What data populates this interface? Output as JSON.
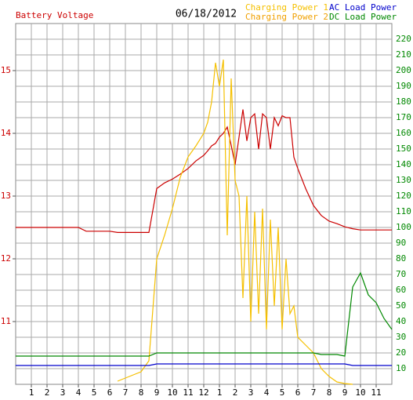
{
  "chart_data": {
    "type": "line",
    "title": "06/18/2012",
    "x": [
      0,
      0.5,
      1,
      1.5,
      2,
      2.5,
      3,
      3.5,
      4,
      4.5,
      5,
      5.5,
      6,
      6.5,
      7,
      7.5,
      8,
      8.5,
      9,
      9.5,
      10,
      10.5,
      11,
      11.5,
      12,
      12.25,
      12.5,
      12.75,
      13,
      13.25,
      13.5,
      13.75,
      14,
      14.25,
      14.5,
      14.75,
      15,
      15.25,
      15.5,
      15.75,
      16,
      16.25,
      16.5,
      16.75,
      17,
      17.25,
      17.5,
      17.75,
      18,
      18.5,
      19,
      19.5,
      20,
      20.5,
      21,
      21.5,
      22,
      22.5,
      23,
      23.5,
      24
    ],
    "xlim": [
      0,
      24
    ],
    "xticks": [
      1,
      2,
      3,
      4,
      5,
      6,
      7,
      8,
      9,
      10,
      11,
      12,
      {
        "value": 13,
        "label": "1"
      },
      {
        "value": 14,
        "label": "2"
      },
      {
        "value": 15,
        "label": "3"
      },
      {
        "value": 16,
        "label": "4"
      },
      {
        "value": 17,
        "label": "5"
      },
      {
        "value": 18,
        "label": "6"
      },
      {
        "value": 19,
        "label": "7"
      },
      {
        "value": 20,
        "label": "8"
      },
      {
        "value": 21,
        "label": "9"
      },
      {
        "value": 22,
        "label": "10"
      },
      {
        "value": 23,
        "label": "11"
      }
    ],
    "ylim": [
      10,
      15.75
    ],
    "yticks": [
      11,
      12,
      13,
      14,
      15
    ],
    "y2lim": [
      0,
      230
    ],
    "y2ticks": [
      10,
      20,
      30,
      40,
      50,
      60,
      70,
      80,
      90,
      100,
      110,
      120,
      130,
      140,
      150,
      160,
      170,
      180,
      190,
      200,
      210,
      220
    ],
    "grid": true,
    "series": [
      {
        "name": "Battery Voltage",
        "color": "#cc0000",
        "axis": "y",
        "values": [
          12.5,
          12.5,
          12.5,
          12.5,
          12.5,
          12.5,
          12.5,
          12.5,
          12.5,
          12.44,
          12.44,
          12.44,
          12.44,
          12.42,
          12.42,
          12.42,
          12.42,
          12.42,
          13.12,
          13.21,
          13.27,
          13.35,
          13.44,
          13.56,
          13.65,
          13.72,
          13.8,
          13.84,
          13.94,
          14.0,
          14.1,
          13.81,
          13.5,
          13.94,
          14.38,
          13.88,
          14.25,
          14.31,
          13.75,
          14.31,
          14.25,
          13.75,
          14.25,
          14.12,
          14.28,
          14.25,
          14.25,
          13.62,
          13.44,
          13.12,
          12.85,
          12.69,
          12.6,
          12.56,
          12.51,
          12.48,
          12.46,
          12.46,
          12.46,
          12.46,
          12.46
        ]
      },
      {
        "name": "Charging Power 1",
        "color": "#f5c000",
        "axis": "y2",
        "values": [
          null,
          null,
          null,
          null,
          null,
          null,
          null,
          null,
          null,
          null,
          null,
          null,
          null,
          2,
          4,
          6,
          8,
          15,
          80,
          95,
          112,
          132,
          145,
          152,
          160,
          167,
          180,
          205,
          190,
          207,
          95,
          195,
          130,
          120,
          55,
          120,
          40,
          110,
          45,
          112,
          35,
          105,
          50,
          100,
          35,
          80,
          45,
          50,
          30,
          25,
          20,
          10,
          5,
          1.5,
          0.5,
          0,
          null,
          null,
          null,
          null,
          null
        ]
      },
      {
        "name": "Charging Power 2",
        "color": "#f0a000",
        "axis": "y2",
        "values": [
          null,
          null,
          null,
          null,
          null,
          null,
          null,
          null,
          null,
          null,
          null,
          null,
          null,
          null,
          null,
          null,
          null,
          null,
          null,
          null,
          null,
          null,
          null,
          null,
          null,
          null,
          null,
          null,
          null,
          null,
          null,
          null,
          null,
          null,
          null,
          null,
          null,
          null,
          null,
          null,
          null,
          null,
          null,
          null,
          null,
          null,
          null,
          null,
          null,
          null,
          null,
          null,
          null,
          null,
          null,
          null,
          null,
          null,
          null,
          null,
          null
        ]
      },
      {
        "name": "AC Load Power",
        "color": "#0000cc",
        "axis": "y2",
        "values": [
          12,
          12,
          12,
          12,
          12,
          12,
          12,
          12,
          12,
          12,
          12,
          12,
          12,
          12,
          12,
          12,
          12,
          12,
          13,
          13,
          13,
          13,
          13,
          13,
          13,
          13,
          13,
          13,
          13,
          13,
          13,
          13,
          13,
          13,
          13,
          13,
          13,
          13,
          13,
          13,
          13,
          13,
          13,
          13,
          13,
          13,
          13,
          13,
          13,
          13,
          13,
          13,
          13,
          13,
          13,
          12,
          12,
          12,
          12,
          12,
          12
        ]
      },
      {
        "name": "DC Load Power",
        "color": "#008800",
        "axis": "y2",
        "values": [
          18,
          18,
          18,
          18,
          18,
          18,
          18,
          18,
          18,
          18,
          18,
          18,
          18,
          18,
          18,
          18,
          18,
          18,
          20,
          20,
          20,
          20,
          20,
          20,
          20,
          20,
          20,
          20,
          20,
          20,
          20,
          20,
          20,
          20,
          20,
          20,
          20,
          20,
          20,
          20,
          20,
          20,
          20,
          20,
          20,
          20,
          20,
          20,
          20,
          20,
          20,
          19,
          19,
          19,
          18,
          62,
          71,
          57,
          52,
          42,
          35
        ]
      }
    ]
  }
}
